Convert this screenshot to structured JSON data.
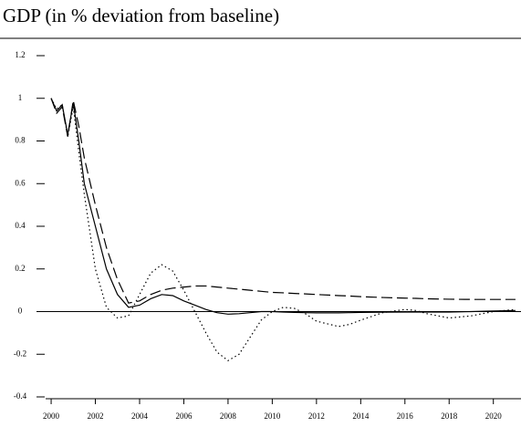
{
  "chart_data": {
    "type": "line",
    "title": "GDP (in % deviation from baseline)",
    "x": [
      2000,
      2000.25,
      2000.5,
      2000.75,
      2001,
      2001.25,
      2001.5,
      2002,
      2002.5,
      2003,
      2003.5,
      2004,
      2004.5,
      2005,
      2005.5,
      2006,
      2006.5,
      2007,
      2007.5,
      2008,
      2008.5,
      2009,
      2009.5,
      2010,
      2010.5,
      2011,
      2011.5,
      2012,
      2013,
      2013.5,
      2014,
      2015,
      2016,
      2016.5,
      2017,
      2018,
      2019,
      2020,
      2021
    ],
    "series": [
      {
        "color": "#000000",
        "style": "solid",
        "values": [
          1,
          0.94,
          0.97,
          0.83,
          0.98,
          0.8,
          0.6,
          0.4,
          0.2,
          0.08,
          0.02,
          0.03,
          0.06,
          0.08,
          0.075,
          0.05,
          0.03,
          0.01,
          -0.005,
          -0.012,
          -0.01,
          -0.005,
          0,
          0,
          -0.002,
          -0.004,
          -0.005,
          -0.006,
          -0.006,
          -0.005,
          -0.004,
          -0.003,
          -0.002,
          -0.002,
          -0.002,
          -0.002,
          0,
          0.003,
          0.005
        ]
      },
      {
        "color": "#000000",
        "style": "dashed",
        "values": [
          1,
          0.93,
          0.96,
          0.82,
          0.99,
          0.87,
          0.72,
          0.5,
          0.3,
          0.15,
          0.04,
          0.05,
          0.08,
          0.1,
          0.11,
          0.115,
          0.12,
          0.12,
          0.115,
          0.11,
          0.105,
          0.1,
          0.095,
          0.09,
          0.088,
          0.085,
          0.083,
          0.08,
          0.075,
          0.073,
          0.07,
          0.066,
          0.063,
          0.062,
          0.06,
          0.058,
          0.057,
          0.057,
          0.057
        ]
      },
      {
        "color": "#000000",
        "style": "dotted",
        "values": [
          1,
          0.95,
          0.97,
          0.82,
          0.96,
          0.75,
          0.55,
          0.2,
          0.02,
          -0.03,
          -0.02,
          0.08,
          0.18,
          0.22,
          0.19,
          0.1,
          0,
          -0.1,
          -0.19,
          -0.23,
          -0.2,
          -0.12,
          -0.04,
          0,
          0.02,
          0.015,
          -0.01,
          -0.045,
          -0.07,
          -0.06,
          -0.04,
          -0.005,
          0.01,
          0.005,
          -0.01,
          -0.03,
          -0.02,
          0,
          0.01
        ]
      }
    ],
    "xlim": [
      1999.75,
      2021.25
    ],
    "xticks": [
      2000,
      2002,
      2004,
      2006,
      2008,
      2010,
      2012,
      2014,
      2016,
      2018,
      2020
    ],
    "ylim": [
      -0.4,
      1.2
    ],
    "yticks": [
      -0.4,
      -0.2,
      0,
      0.2,
      0.4,
      0.6,
      0.8,
      1,
      1.2
    ],
    "zero_line": true
  }
}
